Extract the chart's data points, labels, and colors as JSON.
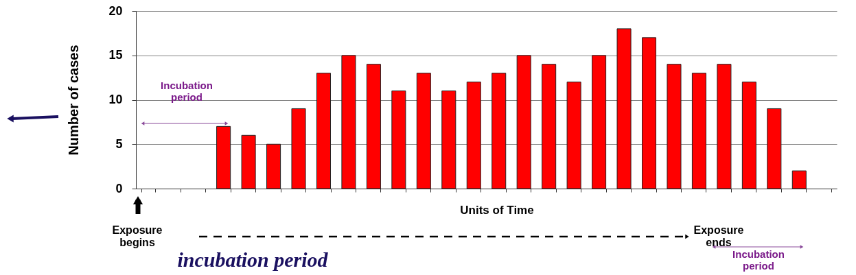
{
  "chart_data": {
    "type": "bar",
    "xlabel": "Units of Time",
    "ylabel": "Number of cases",
    "categories": [
      null,
      null,
      null,
      null,
      null,
      null,
      null,
      null,
      null,
      null,
      null,
      null,
      null,
      null,
      null,
      null,
      null,
      null,
      null,
      null,
      null,
      null,
      null,
      null,
      null,
      null,
      null,
      null
    ],
    "values": [
      null,
      null,
      null,
      7,
      6,
      5,
      9,
      13,
      15,
      14,
      11,
      13,
      11,
      12,
      13,
      15,
      14,
      12,
      15,
      18,
      17,
      14,
      13,
      14,
      12,
      9,
      2,
      null
    ],
    "color": "#ff0000",
    "ylim": [
      0,
      20
    ],
    "yticks": [
      0,
      5,
      10,
      15,
      20
    ],
    "grid": "y",
    "tick_labels": "y",
    "annotations": [
      "Incubation period",
      "Exposure begins",
      "Exposure ends",
      "Incubation period",
      "incubation period"
    ]
  }
}
